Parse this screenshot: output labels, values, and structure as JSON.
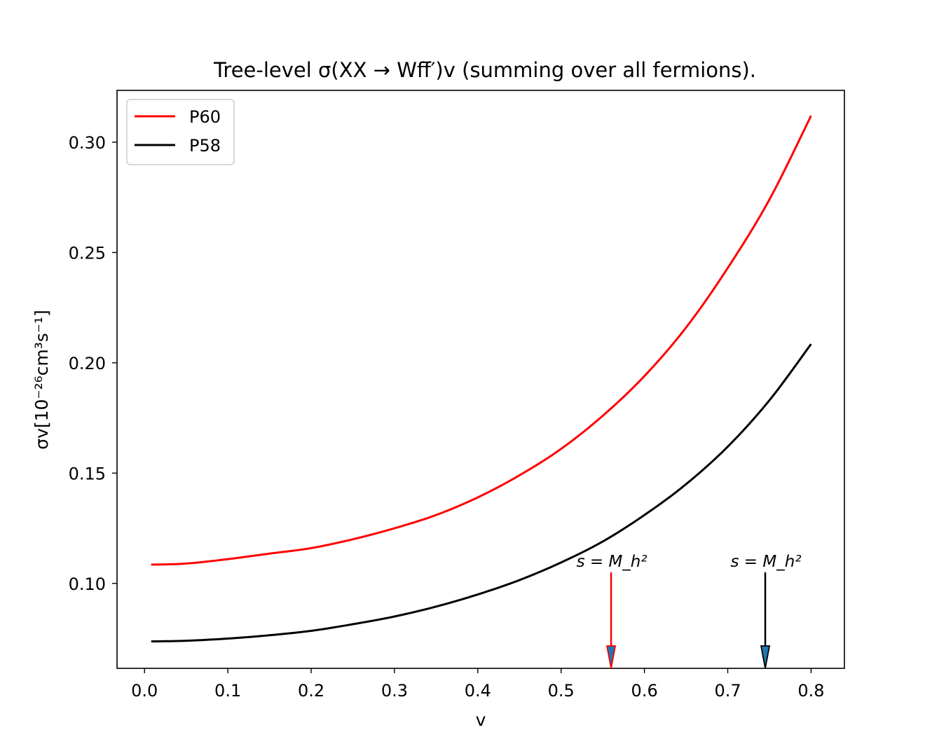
{
  "chart_data": {
    "type": "line",
    "title": "Tree-level σ(XX → Wff̄′)v  (summing over all fermions).",
    "xlabel": "v",
    "ylabel": "σv[10⁻²⁶cm³s⁻¹]",
    "xlim": [
      -0.033,
      0.84
    ],
    "ylim": [
      0.0615,
      0.3235
    ],
    "xticks": [
      0.0,
      0.1,
      0.2,
      0.3,
      0.4,
      0.5,
      0.6,
      0.7,
      0.8
    ],
    "xtick_labels": [
      "0.0",
      "0.1",
      "0.2",
      "0.3",
      "0.4",
      "0.5",
      "0.6",
      "0.7",
      "0.8"
    ],
    "yticks": [
      0.1,
      0.15,
      0.2,
      0.25,
      0.3
    ],
    "ytick_labels": [
      "0.10",
      "0.15",
      "0.20",
      "0.25",
      "0.30"
    ],
    "grid": false,
    "legend": {
      "position": "top-left",
      "entries": [
        "P60",
        "P58"
      ]
    },
    "series": [
      {
        "name": "P60",
        "color": "#ff0000",
        "x": [
          0.008,
          0.05,
          0.1,
          0.15,
          0.2,
          0.25,
          0.3,
          0.35,
          0.4,
          0.45,
          0.5,
          0.55,
          0.6,
          0.65,
          0.7,
          0.75,
          0.8
        ],
        "y": [
          0.1085,
          0.109,
          0.111,
          0.1135,
          0.116,
          0.12,
          0.125,
          0.131,
          0.139,
          0.149,
          0.161,
          0.176,
          0.194,
          0.216,
          0.243,
          0.274,
          0.312
        ]
      },
      {
        "name": "P58",
        "color": "#000000",
        "x": [
          0.008,
          0.05,
          0.1,
          0.15,
          0.2,
          0.25,
          0.3,
          0.35,
          0.4,
          0.45,
          0.5,
          0.55,
          0.6,
          0.65,
          0.7,
          0.75,
          0.8
        ],
        "y": [
          0.0737,
          0.074,
          0.075,
          0.0765,
          0.0785,
          0.0815,
          0.085,
          0.0895,
          0.095,
          0.1015,
          0.1095,
          0.119,
          0.131,
          0.145,
          0.162,
          0.183,
          0.2085
        ]
      }
    ],
    "annotations": [
      {
        "text": "s = M_h²",
        "x": 0.56,
        "y_start": 0.105,
        "y_end": 0.0615,
        "arrow_color": "#ff0000",
        "head_fill": "#1f77b4"
      },
      {
        "text": "s = M_h²",
        "x": 0.745,
        "y_start": 0.105,
        "y_end": 0.0615,
        "arrow_color": "#000000",
        "head_fill": "#1f77b4"
      }
    ]
  }
}
